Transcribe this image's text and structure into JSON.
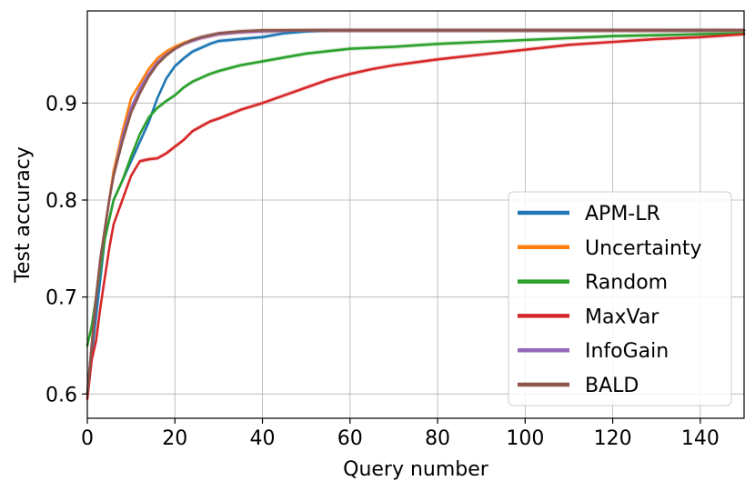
{
  "chart_data": {
    "type": "line",
    "title": "",
    "xlabel": "Query number",
    "ylabel": "Test accuracy",
    "xlim": [
      0,
      150
    ],
    "ylim": [
      0.575,
      0.995
    ],
    "xticks": [
      0,
      20,
      40,
      60,
      80,
      100,
      120,
      140
    ],
    "xtick_labels": [
      "0",
      "20",
      "40",
      "60",
      "80",
      "100",
      "120",
      "140"
    ],
    "yticks": [
      0.6,
      0.7,
      0.8,
      0.9
    ],
    "ytick_labels": [
      "0.6",
      "0.7",
      "0.8",
      "0.9"
    ],
    "grid": true,
    "legend_position": "lower-right",
    "series": [
      {
        "name": "APM-LR",
        "color": "#1f77b4",
        "x": [
          0,
          1,
          2,
          3,
          4,
          5,
          6,
          8,
          10,
          12,
          14,
          16,
          18,
          20,
          22,
          24,
          26,
          28,
          30,
          35,
          40,
          45,
          50,
          55,
          60,
          80,
          100,
          120,
          140,
          150
        ],
        "y": [
          0.6,
          0.64,
          0.68,
          0.72,
          0.76,
          0.78,
          0.8,
          0.82,
          0.84,
          0.86,
          0.88,
          0.905,
          0.925,
          0.938,
          0.946,
          0.953,
          0.957,
          0.961,
          0.964,
          0.966,
          0.968,
          0.972,
          0.974,
          0.975,
          0.975,
          0.975,
          0.975,
          0.975,
          0.975,
          0.975
        ]
      },
      {
        "name": "Uncertainty",
        "color": "#ff7f0e",
        "x": [
          0,
          1,
          2,
          3,
          4,
          5,
          6,
          8,
          10,
          12,
          14,
          16,
          18,
          20,
          22,
          24,
          26,
          28,
          30,
          35,
          40,
          50,
          60,
          80,
          100,
          120,
          140,
          150
        ],
        "y": [
          0.6,
          0.65,
          0.7,
          0.74,
          0.77,
          0.8,
          0.83,
          0.87,
          0.905,
          0.92,
          0.935,
          0.946,
          0.953,
          0.958,
          0.962,
          0.965,
          0.967,
          0.969,
          0.971,
          0.973,
          0.974,
          0.975,
          0.975,
          0.975,
          0.975,
          0.975,
          0.975,
          0.975
        ]
      },
      {
        "name": "Random",
        "color": "#2ca02c",
        "x": [
          0,
          1,
          2,
          3,
          4,
          5,
          6,
          8,
          10,
          12,
          14,
          16,
          18,
          20,
          22,
          24,
          26,
          28,
          30,
          35,
          40,
          45,
          50,
          60,
          70,
          80,
          90,
          100,
          110,
          120,
          130,
          140,
          150
        ],
        "y": [
          0.65,
          0.67,
          0.7,
          0.73,
          0.76,
          0.78,
          0.8,
          0.82,
          0.845,
          0.868,
          0.885,
          0.895,
          0.902,
          0.908,
          0.916,
          0.922,
          0.926,
          0.93,
          0.933,
          0.939,
          0.943,
          0.947,
          0.951,
          0.956,
          0.958,
          0.961,
          0.963,
          0.965,
          0.967,
          0.969,
          0.97,
          0.971,
          0.972
        ]
      },
      {
        "name": "MaxVar",
        "color": "#d62728",
        "x": [
          0,
          1,
          2,
          3,
          4,
          5,
          6,
          8,
          10,
          12,
          14,
          16,
          18,
          20,
          22,
          24,
          26,
          28,
          30,
          35,
          40,
          45,
          50,
          55,
          60,
          65,
          70,
          75,
          80,
          90,
          100,
          110,
          120,
          130,
          140,
          150
        ],
        "y": [
          0.595,
          0.635,
          0.655,
          0.69,
          0.72,
          0.75,
          0.775,
          0.8,
          0.825,
          0.84,
          0.842,
          0.843,
          0.848,
          0.855,
          0.862,
          0.871,
          0.876,
          0.881,
          0.884,
          0.893,
          0.9,
          0.908,
          0.916,
          0.924,
          0.93,
          0.935,
          0.939,
          0.942,
          0.945,
          0.95,
          0.955,
          0.96,
          0.963,
          0.966,
          0.968,
          0.971
        ]
      },
      {
        "name": "InfoGain",
        "color": "#9467bd",
        "x": [
          0,
          1,
          2,
          3,
          4,
          5,
          6,
          8,
          10,
          12,
          14,
          16,
          18,
          20,
          22,
          24,
          26,
          28,
          30,
          35,
          40,
          50,
          60,
          80,
          100,
          120,
          140,
          150
        ],
        "y": [
          0.6,
          0.65,
          0.7,
          0.74,
          0.77,
          0.8,
          0.825,
          0.865,
          0.895,
          0.915,
          0.93,
          0.942,
          0.95,
          0.956,
          0.961,
          0.964,
          0.967,
          0.969,
          0.971,
          0.973,
          0.974,
          0.975,
          0.975,
          0.975,
          0.975,
          0.975,
          0.975,
          0.975
        ]
      },
      {
        "name": "BALD",
        "color": "#8c564b",
        "x": [
          0,
          1,
          2,
          3,
          4,
          5,
          6,
          8,
          10,
          12,
          14,
          16,
          18,
          20,
          22,
          24,
          26,
          28,
          30,
          35,
          40,
          50,
          60,
          80,
          100,
          120,
          140,
          150
        ],
        "y": [
          0.6,
          0.65,
          0.7,
          0.74,
          0.77,
          0.8,
          0.825,
          0.86,
          0.89,
          0.91,
          0.927,
          0.94,
          0.949,
          0.956,
          0.961,
          0.965,
          0.968,
          0.97,
          0.972,
          0.974,
          0.975,
          0.975,
          0.975,
          0.975,
          0.975,
          0.975,
          0.975,
          0.975
        ]
      }
    ]
  }
}
